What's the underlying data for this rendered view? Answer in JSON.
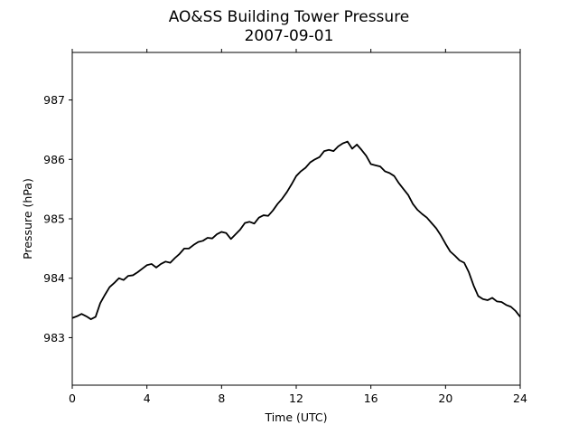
{
  "chart_data": {
    "type": "line",
    "title": "AO&SS Building Tower Pressure",
    "subtitle": "2007-09-01",
    "xlabel": "Time (UTC)",
    "ylabel": "Pressure (hPa)",
    "xlim": [
      0,
      24
    ],
    "ylim": [
      982.2,
      987.8
    ],
    "xticks": [
      0,
      4,
      8,
      12,
      16,
      20,
      24
    ],
    "xtick_labels": [
      "0",
      "4",
      "8",
      "12",
      "16",
      "20",
      "24"
    ],
    "yticks": [
      983,
      984,
      985,
      986,
      987
    ],
    "ytick_labels": [
      "983",
      "984",
      "985",
      "986",
      "987"
    ],
    "grid": false,
    "line_color": "#000000",
    "series": [
      {
        "x": [
          0,
          0.25,
          0.5,
          0.75,
          1.0,
          1.25,
          1.5,
          1.75,
          2.0,
          2.25,
          2.5,
          2.75,
          3.0,
          3.25,
          3.5,
          3.75,
          4.0,
          4.25,
          4.5,
          4.75,
          5.0,
          5.25,
          5.5,
          5.75,
          6.0,
          6.25,
          6.5,
          6.75,
          7.0,
          7.25,
          7.5,
          7.75,
          8.0,
          8.25,
          8.5,
          8.75,
          9.0,
          9.25,
          9.5,
          9.75,
          10.0,
          10.25,
          10.5,
          10.75,
          11.0,
          11.25,
          11.5,
          11.75,
          12.0,
          12.25,
          12.5,
          12.75,
          13.0,
          13.25,
          13.5,
          13.75,
          14.0,
          14.25,
          14.5,
          14.75,
          15.0,
          15.25,
          15.5,
          15.75,
          16.0,
          16.25,
          16.5,
          16.75,
          17.0,
          17.25,
          17.5,
          17.75,
          18.0,
          18.25,
          18.5,
          18.75,
          19.0,
          19.25,
          19.5,
          19.75,
          20.0,
          20.25,
          20.5,
          20.75,
          21.0,
          21.25,
          21.5,
          21.75,
          22.0,
          22.25,
          22.5,
          22.75,
          23.0,
          23.25,
          23.5,
          23.75,
          24.0
        ],
        "y": [
          983.33,
          983.36,
          983.4,
          983.36,
          983.31,
          983.35,
          983.58,
          983.72,
          983.85,
          983.92,
          984.0,
          983.97,
          984.04,
          984.05,
          984.1,
          984.16,
          984.22,
          984.24,
          984.18,
          984.24,
          984.28,
          984.26,
          984.34,
          984.41,
          984.5,
          984.5,
          984.56,
          984.61,
          984.63,
          984.68,
          984.67,
          984.74,
          984.78,
          984.76,
          984.66,
          984.74,
          984.82,
          984.93,
          984.95,
          984.92,
          985.02,
          985.06,
          985.05,
          985.14,
          985.25,
          985.34,
          985.45,
          985.58,
          985.72,
          985.8,
          985.86,
          985.95,
          986.0,
          986.04,
          986.14,
          986.16,
          986.14,
          986.22,
          986.27,
          986.3,
          986.18,
          986.25,
          986.16,
          986.06,
          985.92,
          985.9,
          985.88,
          985.8,
          985.77,
          985.72,
          985.6,
          985.5,
          985.4,
          985.25,
          985.15,
          985.08,
          985.02,
          984.93,
          984.84,
          984.72,
          984.58,
          984.45,
          984.38,
          984.3,
          984.26,
          984.1,
          983.88,
          983.7,
          983.65,
          983.63,
          983.67,
          983.61,
          983.6,
          983.55,
          983.52,
          983.45,
          983.35
        ]
      }
    ]
  }
}
